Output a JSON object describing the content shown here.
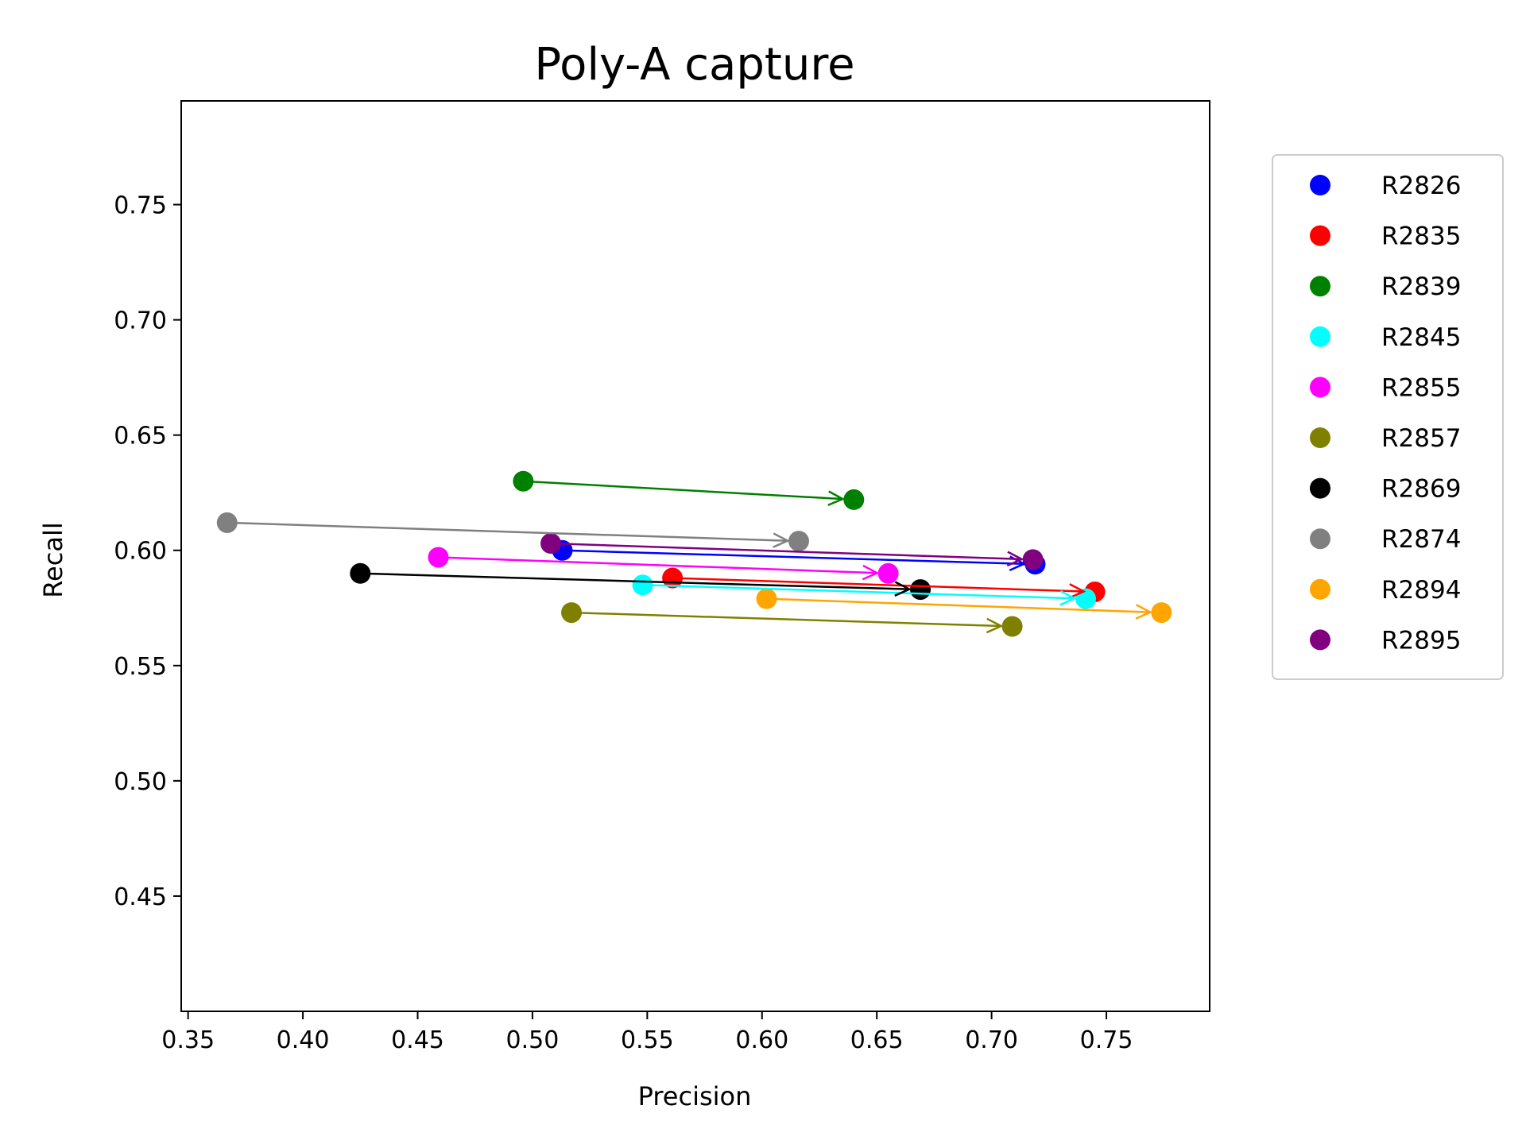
{
  "chart_data": {
    "type": "scatter",
    "title": "Poly-A capture",
    "xlabel": "Precision",
    "ylabel": "Recall",
    "xlim": [
      0.347,
      0.795
    ],
    "ylim": [
      0.4,
      0.795
    ],
    "xticks": [
      "0.35",
      "0.40",
      "0.45",
      "0.50",
      "0.55",
      "0.60",
      "0.65",
      "0.70",
      "0.75"
    ],
    "yticks": [
      "0.45",
      "0.50",
      "0.55",
      "0.60",
      "0.65",
      "0.70",
      "0.75"
    ],
    "grid": false,
    "legend_position": "outside right, top",
    "annotation": "arrows point from first to second point of each series",
    "series": [
      {
        "name": "R2826",
        "color": "#0000ff",
        "points": [
          {
            "x": 0.513,
            "y": 0.6
          },
          {
            "x": 0.719,
            "y": 0.594
          }
        ]
      },
      {
        "name": "R2835",
        "color": "#ff0000",
        "points": [
          {
            "x": 0.561,
            "y": 0.588
          },
          {
            "x": 0.745,
            "y": 0.582
          }
        ]
      },
      {
        "name": "R2839",
        "color": "#008000",
        "points": [
          {
            "x": 0.496,
            "y": 0.63
          },
          {
            "x": 0.64,
            "y": 0.622
          }
        ]
      },
      {
        "name": "R2845",
        "color": "#00ffff",
        "points": [
          {
            "x": 0.548,
            "y": 0.585
          },
          {
            "x": 0.741,
            "y": 0.579
          }
        ]
      },
      {
        "name": "R2855",
        "color": "#ff00ff",
        "points": [
          {
            "x": 0.459,
            "y": 0.597
          },
          {
            "x": 0.655,
            "y": 0.59
          }
        ]
      },
      {
        "name": "R2857",
        "color": "#808000",
        "points": [
          {
            "x": 0.517,
            "y": 0.573
          },
          {
            "x": 0.709,
            "y": 0.567
          }
        ]
      },
      {
        "name": "R2869",
        "color": "#000000",
        "points": [
          {
            "x": 0.425,
            "y": 0.59
          },
          {
            "x": 0.669,
            "y": 0.583
          }
        ]
      },
      {
        "name": "R2874",
        "color": "#808080",
        "points": [
          {
            "x": 0.367,
            "y": 0.612
          },
          {
            "x": 0.616,
            "y": 0.604
          }
        ]
      },
      {
        "name": "R2894",
        "color": "#ffa500",
        "points": [
          {
            "x": 0.602,
            "y": 0.579
          },
          {
            "x": 0.774,
            "y": 0.573
          }
        ]
      },
      {
        "name": "R2895",
        "color": "#800080",
        "points": [
          {
            "x": 0.508,
            "y": 0.603
          },
          {
            "x": 0.718,
            "y": 0.596
          }
        ]
      }
    ]
  }
}
